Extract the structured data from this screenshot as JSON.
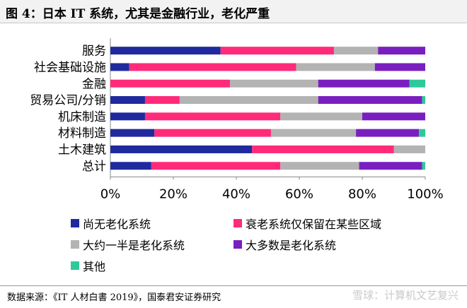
{
  "title": "图 4：日本 IT 系统，尤其是金融行业，老化严重",
  "source": "数据来源：《IT 人材白書 2019》，国泰君安证券研究",
  "watermark": "雪球：计算机文艺复兴",
  "colors": {
    "s0": "#1f2a9e",
    "s1": "#ff2b7a",
    "s2": "#b3b3b3",
    "s3": "#7a1fbf",
    "s4": "#2ec99a"
  },
  "chart_data": {
    "type": "bar",
    "orientation": "horizontal",
    "stacked": true,
    "categories": [
      "服务",
      "社会基础设施",
      "金融",
      "贸易公司/分销",
      "机床制造",
      "材料制造",
      "土木建筑",
      "总计"
    ],
    "series": [
      {
        "name": "尚无老化系统",
        "color": "#1f2a9e",
        "values": [
          35,
          6,
          0,
          11,
          11,
          14,
          45,
          13
        ]
      },
      {
        "name": "衰老系统仅保留在某些区域",
        "color": "#ff2b7a",
        "values": [
          36,
          53,
          38,
          11,
          43,
          37,
          45,
          41
        ]
      },
      {
        "name": "大约一半是老化系统",
        "color": "#b3b3b3",
        "values": [
          14,
          25,
          28,
          44,
          26,
          27,
          10,
          25
        ]
      },
      {
        "name": "大多数是老化系统",
        "color": "#7a1fbf",
        "values": [
          15,
          16,
          29,
          33,
          20,
          20,
          0,
          20
        ]
      },
      {
        "name": "其他",
        "color": "#2ec99a",
        "values": [
          0,
          0,
          5,
          1,
          0,
          2,
          0,
          1
        ]
      }
    ],
    "xlim": [
      0,
      100
    ],
    "xticks": [
      "0%",
      "20%",
      "40%",
      "60%",
      "80%",
      "100%"
    ],
    "grid": false,
    "legend_position": "bottom"
  }
}
